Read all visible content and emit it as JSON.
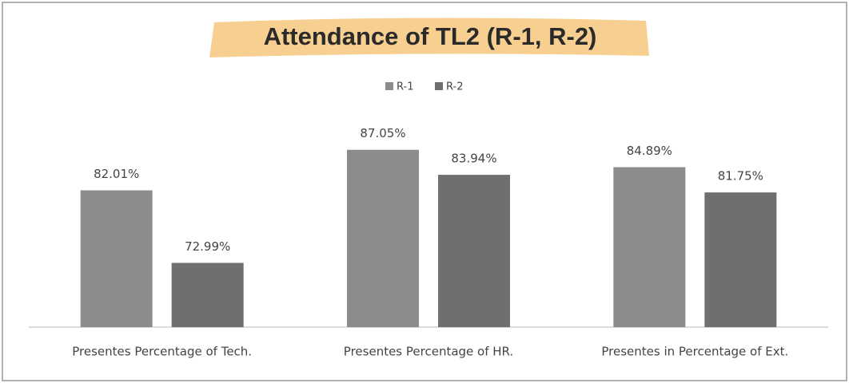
{
  "chart_data": {
    "type": "bar",
    "title": "Attendance of TL2 (R-1, R-2)",
    "categories": [
      "Presentes Percentage of Tech.",
      "Presentes Percentage of HR.",
      "Presentes in Percentage of Ext."
    ],
    "series": [
      {
        "name": "R-1",
        "color": "#8c8c8c",
        "values": [
          82.01,
          87.05,
          84.89
        ],
        "value_labels": [
          "82.01%",
          "87.05%",
          "84.89%"
        ]
      },
      {
        "name": "R-2",
        "color": "#6f6f6f",
        "values": [
          72.99,
          83.94,
          81.75
        ],
        "value_labels": [
          "72.99%",
          "83.94%",
          "81.75%"
        ]
      }
    ],
    "ylim": [
      65,
      90
    ],
    "legend": "top"
  }
}
